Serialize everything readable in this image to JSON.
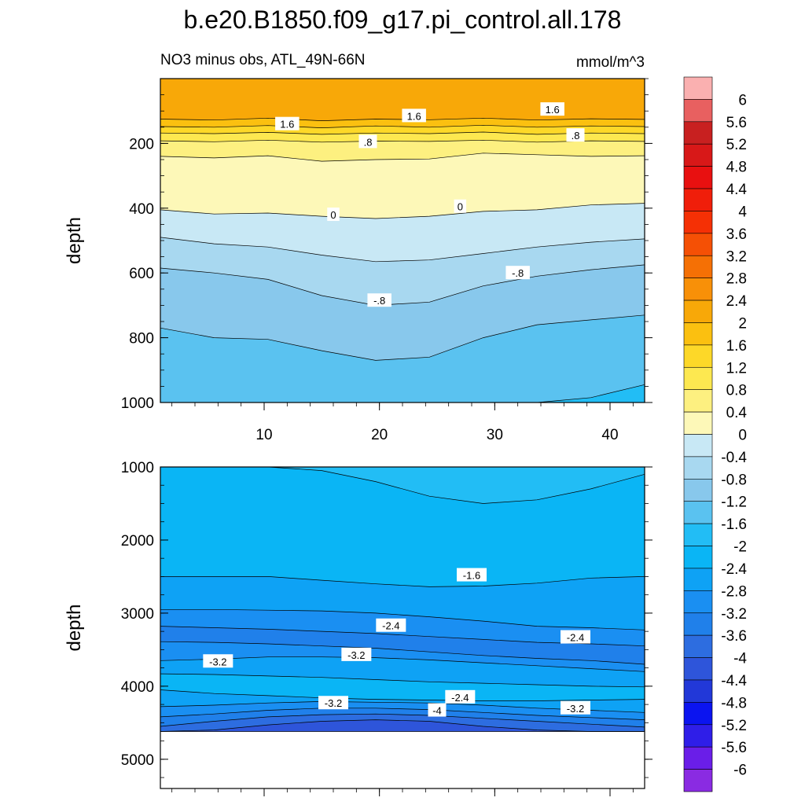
{
  "chart_data": {
    "type": "heatmap",
    "title": "b.e20.B1850.f09_g17.pi_control.all.178",
    "left_subtitle": "NO3 minus obs, ATL_49N-66N",
    "right_subtitle": "mmol/m^3",
    "colorbar": {
      "levels": [
        -6,
        -5.6,
        -5.2,
        -4.8,
        -4.4,
        -4,
        -3.6,
        -3.2,
        -2.8,
        -2.4,
        -2,
        -1.6,
        -1.2,
        -0.8,
        -0.4,
        0,
        0.4,
        0.8,
        1.2,
        1.6,
        2,
        2.4,
        2.8,
        3.2,
        3.6,
        4,
        4.4,
        4.8,
        5.2,
        5.6,
        6
      ],
      "labels": [
        "-6",
        "-5.6",
        "-5.2",
        "-4.8",
        "-4.4",
        "-4",
        "-3.6",
        "-3.2",
        "-2.8",
        "-2.4",
        "-2",
        "-1.6",
        "-1.2",
        "-0.8",
        "-0.4",
        "0",
        "0.4",
        "0.8",
        "1.2",
        "1.6",
        "2",
        "2.4",
        "2.8",
        "3.2",
        "3.6",
        "4",
        "4.4",
        "4.8",
        "5.2",
        "5.6",
        "6"
      ],
      "colors": [
        "#8a2be2",
        "#6a1ee8",
        "#2f1ee8",
        "#0b14f0",
        "#2238d8",
        "#2e55da",
        "#2d6de0",
        "#2080ea",
        "#1a8ff2",
        "#0ea2f5",
        "#0ab5f5",
        "#22bdf5",
        "#5ac2f0",
        "#88c8ec",
        "#a8d8f0",
        "#c8e8f5",
        "#fdf8b8",
        "#fdf080",
        "#fde850",
        "#fdd828",
        "#fbc010",
        "#f8a808",
        "#f89008",
        "#f57005",
        "#f55005",
        "#f53005",
        "#f01e0a",
        "#e81010",
        "#d81818",
        "#c82020",
        "#e86060",
        "#fab0b0"
      ]
    },
    "panels": [
      {
        "name": "upper",
        "xlim": [
          1,
          43
        ],
        "ylim": [
          0,
          1000
        ],
        "y_inverted": true,
        "ylabel": "depth",
        "yticks": [
          200,
          400,
          600,
          800,
          1000
        ],
        "yticklabels": [
          "200",
          "400",
          "600",
          "800",
          "1000"
        ],
        "xticks": [
          10,
          20,
          30,
          40
        ],
        "xticklabels": [
          "10",
          "20",
          "30",
          "40"
        ],
        "boundaries": [
          {
            "value": 2.0,
            "depth": [
              125,
              128,
              122,
              130,
              125,
              127,
              122,
              128,
              124,
              126
            ]
          },
          {
            "value": 1.6,
            "depth": [
              148,
              150,
              145,
              152,
              146,
              150,
              144,
              150,
              146,
              148
            ]
          },
          {
            "value": 1.2,
            "depth": [
              168,
              170,
              166,
              172,
              168,
              170,
              165,
              172,
              168,
              170
            ]
          },
          {
            "value": 0.8,
            "depth": [
              192,
              195,
              190,
              196,
              193,
              194,
              190,
              196,
              192,
              194
            ]
          },
          {
            "value": 0.4,
            "depth": [
              240,
              245,
              238,
              255,
              250,
              248,
              230,
              235,
              240,
              238
            ]
          },
          {
            "value": 0.0,
            "depth": [
              405,
              418,
              415,
              425,
              432,
              425,
              410,
              405,
              390,
              385
            ]
          },
          {
            "value": -0.4,
            "depth": [
              490,
              510,
              520,
              545,
              565,
              560,
              540,
              520,
              505,
              495
            ]
          },
          {
            "value": -0.8,
            "depth": [
              585,
              600,
              620,
              670,
              700,
              690,
              640,
              610,
              590,
              575
            ]
          },
          {
            "value": -1.2,
            "depth": [
              770,
              800,
              805,
              840,
              870,
              860,
              800,
              760,
              745,
              730
            ]
          },
          {
            "value": -1.6,
            "depth": [
              1000,
              1000,
              1000,
              1000,
              1000,
              1000,
              1000,
              1000,
              985,
              945
            ]
          }
        ],
        "deepest_value": -2.0,
        "contour_labels": [
          {
            "text": "1.6",
            "x": 12,
            "depth": 140
          },
          {
            "text": "1.6",
            "x": 23,
            "depth": 115
          },
          {
            "text": "1.6",
            "x": 35,
            "depth": 95
          },
          {
            "text": ".8",
            "x": 19,
            "depth": 195
          },
          {
            "text": ".8",
            "x": 37,
            "depth": 175
          },
          {
            "text": "0",
            "x": 16,
            "depth": 420
          },
          {
            "text": "0",
            "x": 27,
            "depth": 395
          },
          {
            "text": "-.8",
            "x": 32,
            "depth": 600
          },
          {
            "text": "-.8",
            "x": 20,
            "depth": 685
          }
        ]
      },
      {
        "name": "lower",
        "xlim": [
          1,
          43
        ],
        "ylim": [
          1000,
          5400
        ],
        "y_inverted": true,
        "ylabel": "depth",
        "yticks": [
          1000,
          2000,
          3000,
          4000,
          5000
        ],
        "yticklabels": [
          "1000",
          "2000",
          "3000",
          "4000",
          "5000"
        ],
        "xticks": [
          10,
          20,
          30,
          40
        ],
        "xticklabels": [
          "",
          "",
          "",
          ""
        ],
        "data_bottom": 4620,
        "boundaries": [
          {
            "value": -2.0,
            "depth": [
              1000,
              1000,
              1000,
              1050,
              1200,
              1400,
              1500,
              1450,
              1300,
              1100
            ]
          },
          {
            "value": -2.4,
            "depth": [
              2500,
              2500,
              2500,
              2550,
              2600,
              2640,
              2630,
              2590,
              2520,
              2500
            ]
          },
          {
            "value": -2.8,
            "depth": [
              2950,
              2950,
              2960,
              2970,
              3000,
              3050,
              3110,
              3180,
              3200,
              3230
            ]
          },
          {
            "value": -3.2,
            "depth": [
              3180,
              3200,
              3220,
              3250,
              3280,
              3320,
              3360,
              3400,
              3420,
              3450
            ]
          },
          {
            "value": -3.6,
            "depth": [
              3390,
              3400,
              3420,
              3450,
              3480,
              3530,
              3580,
              3620,
              3650,
              3700
            ]
          },
          {
            "value": -3.2,
            "depth": [
              3650,
              3630,
              3600,
              3600,
              3610,
              3640,
              3680,
              3720,
              3760,
              3800
            ]
          },
          {
            "value": -2.8,
            "depth": [
              3830,
              3840,
              3860,
              3880,
              3910,
              3940,
              3960,
              3980,
              4000,
              4010
            ]
          },
          {
            "value": -2.4,
            "depth": [
              4050,
              4100,
              4130,
              4160,
              4180,
              4190,
              4200,
              4200,
              4190,
              4180
            ]
          },
          {
            "value": -2.8,
            "depth": [
              4280,
              4260,
              4230,
              4210,
              4220,
              4230,
              4260,
              4300,
              4330,
              4360
            ]
          },
          {
            "value": -3.2,
            "depth": [
              4420,
              4380,
              4330,
              4300,
              4300,
              4320,
              4360,
              4400,
              4430,
              4460
            ]
          },
          {
            "value": -3.6,
            "depth": [
              4550,
              4480,
              4420,
              4390,
              4380,
              4400,
              4440,
              4480,
              4520,
              4560
            ]
          },
          {
            "value": -4.0,
            "depth": [
              4620,
              4600,
              4530,
              4480,
              4460,
              4480,
              4550,
              4600,
              4620,
              4620
            ]
          }
        ],
        "deepest_value": -4.4,
        "contour_labels": [
          {
            "text": "-1.6",
            "x": 28,
            "depth": 2480
          },
          {
            "text": "-2.4",
            "x": 21,
            "depth": 3170
          },
          {
            "text": "-2.4",
            "x": 37,
            "depth": 3330
          },
          {
            "text": "-3.2",
            "x": 6,
            "depth": 3660
          },
          {
            "text": "-3.2",
            "x": 18,
            "depth": 3570
          },
          {
            "text": "-3.2",
            "x": 16,
            "depth": 4230
          },
          {
            "text": "-4",
            "x": 25,
            "depth": 4330
          },
          {
            "text": "-2.4",
            "x": 27,
            "depth": 4150
          },
          {
            "text": "-3.2",
            "x": 37,
            "depth": 4300
          }
        ]
      }
    ]
  }
}
